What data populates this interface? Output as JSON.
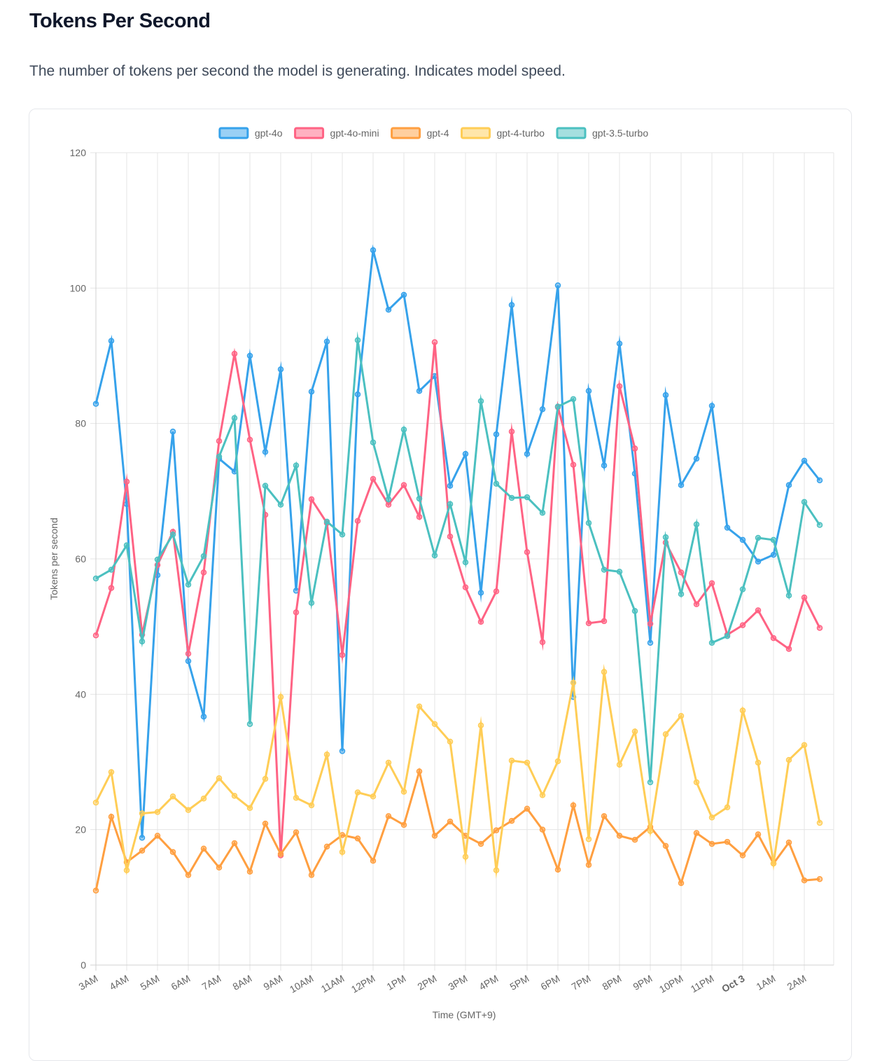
{
  "header": {
    "title": "Tokens Per Second",
    "subtitle": "The number of tokens per second the model is generating. Indicates model speed."
  },
  "chart_data": {
    "type": "line",
    "title": "",
    "xlabel": "Time (GMT+9)",
    "ylabel": "Tokens per second",
    "ylim": [
      0,
      120
    ],
    "y_ticks": [
      0,
      20,
      40,
      60,
      80,
      100,
      120
    ],
    "grid": true,
    "legend_position": "top-center",
    "x_tick_labels": [
      "3AM",
      "4AM",
      "5AM",
      "6AM",
      "7AM",
      "8AM",
      "9AM",
      "10AM",
      "11AM",
      "12PM",
      "1PM",
      "2PM",
      "3PM",
      "4PM",
      "5PM",
      "6PM",
      "7PM",
      "8PM",
      "9PM",
      "10PM",
      "11PM",
      "Oct 3",
      "1AM",
      "2AM"
    ],
    "x_tick_bold": [
      "Oct 3"
    ],
    "x": [
      "3:00AM",
      "3:30AM",
      "4:00AM",
      "4:30AM",
      "5:00AM",
      "5:30AM",
      "6:00AM",
      "6:30AM",
      "7:00AM",
      "7:30AM",
      "8:00AM",
      "8:30AM",
      "9:00AM",
      "9:30AM",
      "10:00AM",
      "10:30AM",
      "11:00AM",
      "11:30AM",
      "12:00PM",
      "12:30PM",
      "1:00PM",
      "1:30PM",
      "2:00PM",
      "2:30PM",
      "3:00PM",
      "3:30PM",
      "4:00PM",
      "4:30PM",
      "5:00PM",
      "5:30PM",
      "6:00PM",
      "6:30PM",
      "7:00PM",
      "7:30PM",
      "8:00PM",
      "8:30PM",
      "9:00PM",
      "9:30PM",
      "10:00PM",
      "10:30PM",
      "11:00PM",
      "11:30PM",
      "12:00AM",
      "12:30AM",
      "1:00AM",
      "1:30AM",
      "2:00AM",
      "2:30AM"
    ],
    "series": [
      {
        "name": "gpt-4o",
        "color": "#36a2eb",
        "values": [
          82.9,
          92.2,
          68.1,
          18.8,
          57.6,
          78.8,
          44.9,
          36.7,
          74.8,
          72.9,
          90.0,
          75.8,
          88.0,
          55.3,
          84.7,
          92.1,
          31.6,
          84.3,
          105.6,
          96.8,
          99.0,
          84.8,
          87.0,
          70.8,
          75.5,
          55.0,
          78.4,
          97.5,
          75.5,
          82.1,
          100.4,
          39.6,
          84.8,
          73.8,
          91.8,
          72.6,
          47.6,
          84.2,
          70.9,
          74.8,
          82.6,
          64.6,
          62.8,
          59.6,
          60.6,
          70.9,
          74.5,
          71.6
        ]
      },
      {
        "name": "gpt-4o-mini",
        "color": "#ff6384",
        "values": [
          48.7,
          55.7,
          71.4,
          48.8,
          59.1,
          64.0,
          46.0,
          58.0,
          77.4,
          90.3,
          77.6,
          66.5,
          16.2,
          52.1,
          68.8,
          65.3,
          45.8,
          65.6,
          71.8,
          68.0,
          70.9,
          66.2,
          92.0,
          63.3,
          55.8,
          50.7,
          55.2,
          78.8,
          61.0,
          47.7,
          82.4,
          73.9,
          50.5,
          50.8,
          85.5,
          76.3,
          50.4,
          62.4,
          58.0,
          53.3,
          56.4,
          48.8,
          50.2,
          52.4,
          48.3,
          46.7,
          54.3,
          49.8
        ]
      },
      {
        "name": "gpt-4",
        "color": "#ff9f40",
        "values": [
          11.0,
          21.9,
          15.2,
          16.9,
          19.1,
          16.7,
          13.3,
          17.2,
          14.4,
          18.0,
          13.8,
          20.9,
          16.4,
          19.6,
          13.3,
          17.5,
          19.2,
          18.7,
          15.4,
          22.0,
          20.7,
          28.6,
          19.1,
          21.2,
          19.1,
          17.9,
          19.9,
          21.3,
          23.1,
          20.0,
          14.1,
          23.6,
          14.8,
          22.0,
          19.1,
          18.5,
          20.4,
          17.6,
          12.1,
          19.5,
          17.9,
          18.2,
          16.2,
          19.3,
          15.0,
          18.1,
          12.5,
          12.7
        ]
      },
      {
        "name": "gpt-4-turbo",
        "color": "#ffcd56",
        "values": [
          24.0,
          28.5,
          14.0,
          22.4,
          22.6,
          24.9,
          22.9,
          24.6,
          27.6,
          25.0,
          23.2,
          27.5,
          39.6,
          24.7,
          23.6,
          31.1,
          16.7,
          25.5,
          24.9,
          29.9,
          25.6,
          38.2,
          35.6,
          33.0,
          16.0,
          35.4,
          14.0,
          30.2,
          29.9,
          25.1,
          30.1,
          41.7,
          18.6,
          43.3,
          29.6,
          34.5,
          19.8,
          34.1,
          36.8,
          27.0,
          21.8,
          23.3,
          37.6,
          29.9,
          15.0,
          30.3,
          32.5,
          21.0
        ]
      },
      {
        "name": "gpt-3.5-turbo",
        "color": "#4bc0c0",
        "values": [
          57.1,
          58.4,
          62.0,
          47.8,
          59.9,
          63.6,
          56.2,
          60.4,
          75.1,
          80.8,
          35.6,
          70.8,
          68.0,
          73.8,
          53.5,
          65.5,
          63.6,
          92.3,
          77.2,
          68.8,
          79.1,
          68.9,
          60.5,
          68.1,
          59.5,
          83.3,
          71.1,
          69.0,
          69.1,
          66.8,
          82.5,
          83.6,
          65.3,
          58.4,
          58.1,
          52.3,
          27.0,
          63.2,
          54.8,
          65.1,
          47.6,
          48.6,
          55.5,
          63.1,
          62.8,
          54.6,
          68.4,
          65.0
        ]
      }
    ]
  }
}
